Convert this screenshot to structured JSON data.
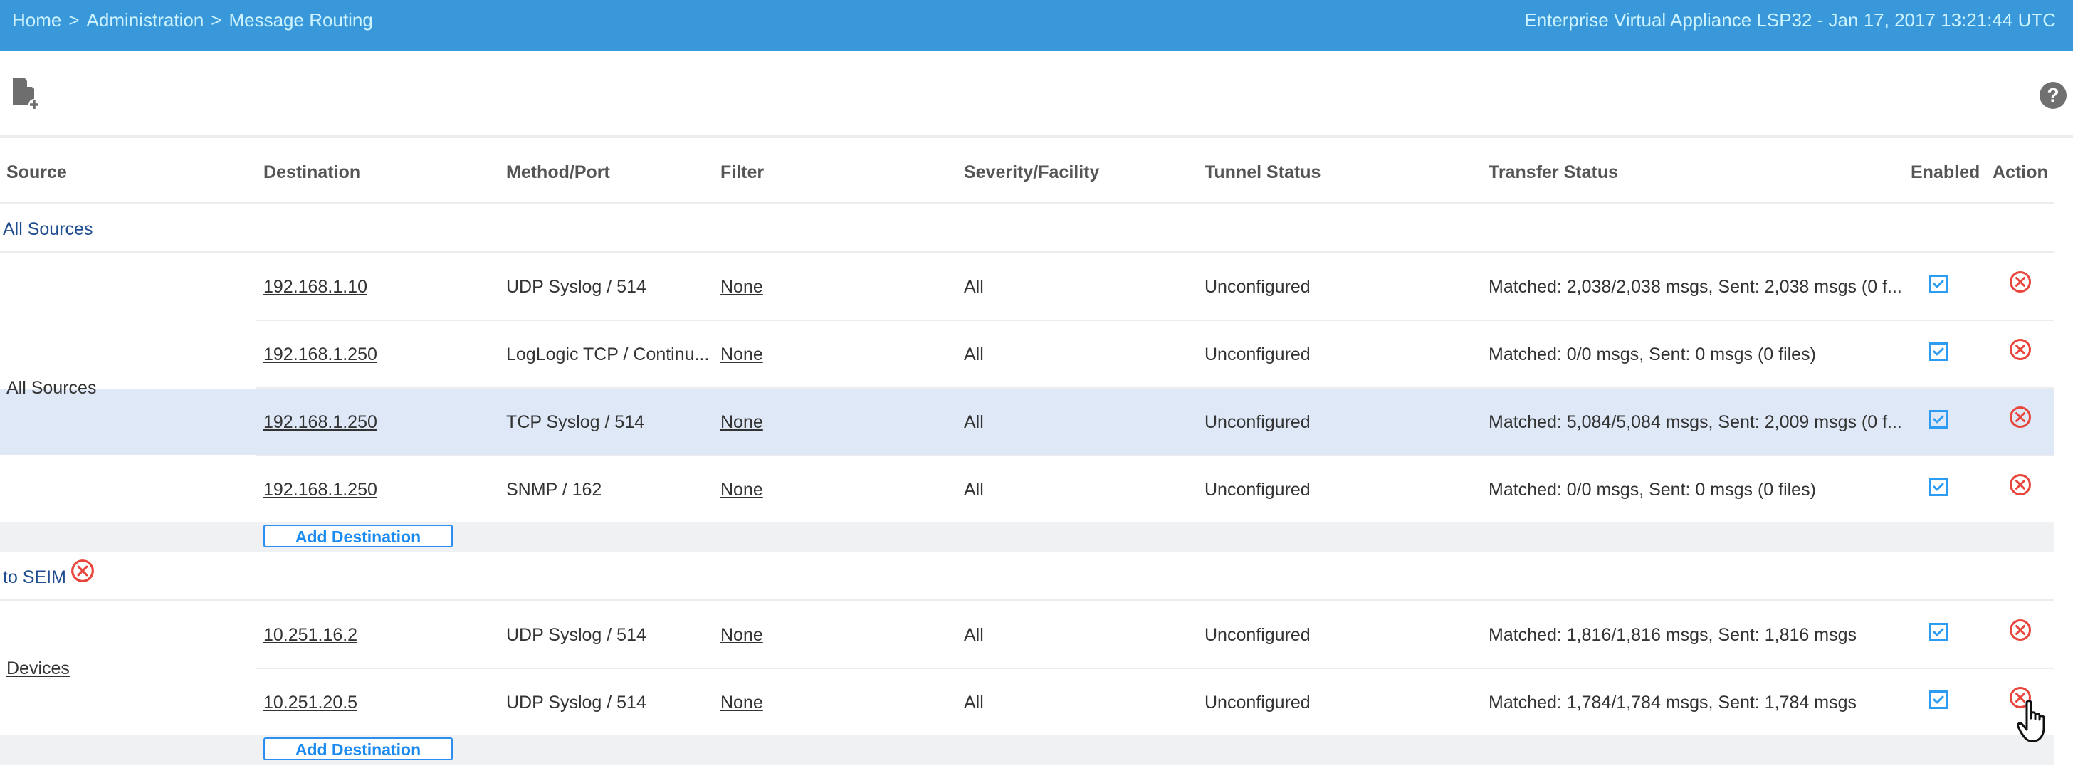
{
  "header": {
    "breadcrumb": [
      "Home",
      "Administration",
      "Message Routing"
    ],
    "separator": ">",
    "app_info": "Enterprise Virtual Appliance LSP32 - Jan 17, 2017 13:21:44 UTC"
  },
  "toolbar": {
    "new_icon": "file-plus-icon",
    "help_icon": "?"
  },
  "columns": [
    "Source",
    "Destination",
    "Method/Port",
    "Filter",
    "Severity/Facility",
    "Tunnel Status",
    "Transfer Status",
    "Enabled",
    "Action"
  ],
  "groups": [
    {
      "name": "All Sources",
      "deletable": false,
      "source": "All Sources",
      "source_link": false,
      "add_label": "Add Destination",
      "rows": [
        {
          "destination": "192.168.1.10",
          "method": "UDP Syslog / 514",
          "filter": "None",
          "severity": "All",
          "tunnel": "Unconfigured",
          "transfer": "Matched: 2,038/2,038 msgs, Sent: 2,038 msgs (0 f...",
          "enabled": true,
          "selected": false
        },
        {
          "destination": "192.168.1.250",
          "method": "LogLogic TCP / Continu...",
          "filter": "None",
          "severity": "All",
          "tunnel": "Unconfigured",
          "transfer": "Matched: 0/0 msgs, Sent: 0 msgs (0 files)",
          "enabled": true,
          "selected": false
        },
        {
          "destination": "192.168.1.250",
          "method": "TCP Syslog / 514",
          "filter": "None",
          "severity": "All",
          "tunnel": "Unconfigured",
          "transfer": "Matched: 5,084/5,084 msgs, Sent: 2,009 msgs (0 f...",
          "enabled": true,
          "selected": true
        },
        {
          "destination": "192.168.1.250",
          "method": "SNMP / 162",
          "filter": "None",
          "severity": "All",
          "tunnel": "Unconfigured",
          "transfer": "Matched: 0/0 msgs, Sent: 0 msgs (0 files)",
          "enabled": true,
          "selected": false
        }
      ]
    },
    {
      "name": "to SEIM",
      "deletable": true,
      "source": "Devices",
      "source_link": true,
      "add_label": "Add Destination",
      "rows": [
        {
          "destination": "10.251.16.2",
          "method": "UDP Syslog / 514",
          "filter": "None",
          "severity": "All",
          "tunnel": "Unconfigured",
          "transfer": "Matched: 1,816/1,816 msgs, Sent: 1,816 msgs",
          "enabled": true,
          "selected": false
        },
        {
          "destination": "10.251.20.5",
          "method": "UDP Syslog / 514",
          "filter": "None",
          "severity": "All",
          "tunnel": "Unconfigured",
          "transfer": "Matched: 1,784/1,784 msgs, Sent: 1,784 msgs",
          "enabled": true,
          "selected": false
        }
      ]
    }
  ],
  "colors": {
    "header_bg": "#3898d9",
    "header_text": "#cdf3ff",
    "selected_row": "#dfe8f6",
    "checkbox": "#2b9cf2",
    "delete": "#e8463c",
    "group_link": "#1f4d8f"
  }
}
